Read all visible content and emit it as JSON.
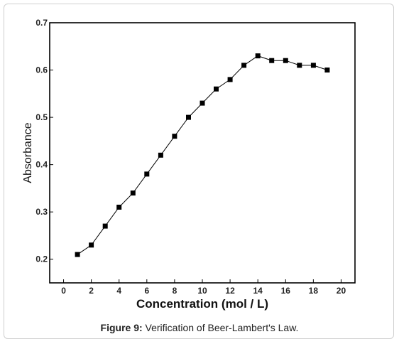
{
  "caption": {
    "label": "Figure 9:",
    "text": "Verification of Beer-Lambert's Law."
  },
  "chart_data": {
    "type": "line",
    "xlabel": "Concentration (mol / L)",
    "ylabel": "Absorbance",
    "xlim": [
      -1,
      21
    ],
    "ylim": [
      0.15,
      0.7
    ],
    "xticks": [
      0,
      2,
      4,
      6,
      8,
      10,
      12,
      14,
      16,
      18,
      20
    ],
    "yticks": [
      0.2,
      0.3,
      0.4,
      0.5,
      0.6,
      0.7
    ],
    "ytick_labels": [
      "0.2",
      "0.3",
      "0.4",
      "0.5",
      "0.6",
      "0.7"
    ],
    "grid": false,
    "marker": "filled-square",
    "series": [
      {
        "x": [
          1,
          2,
          3,
          4,
          5,
          6,
          7,
          8,
          9,
          10,
          11,
          12,
          13,
          14,
          15,
          16,
          17,
          18,
          19
        ],
        "y": [
          0.21,
          0.23,
          0.27,
          0.31,
          0.34,
          0.38,
          0.42,
          0.46,
          0.5,
          0.53,
          0.56,
          0.58,
          0.61,
          0.63,
          0.62,
          0.62,
          0.61,
          0.61,
          0.6
        ]
      }
    ]
  }
}
